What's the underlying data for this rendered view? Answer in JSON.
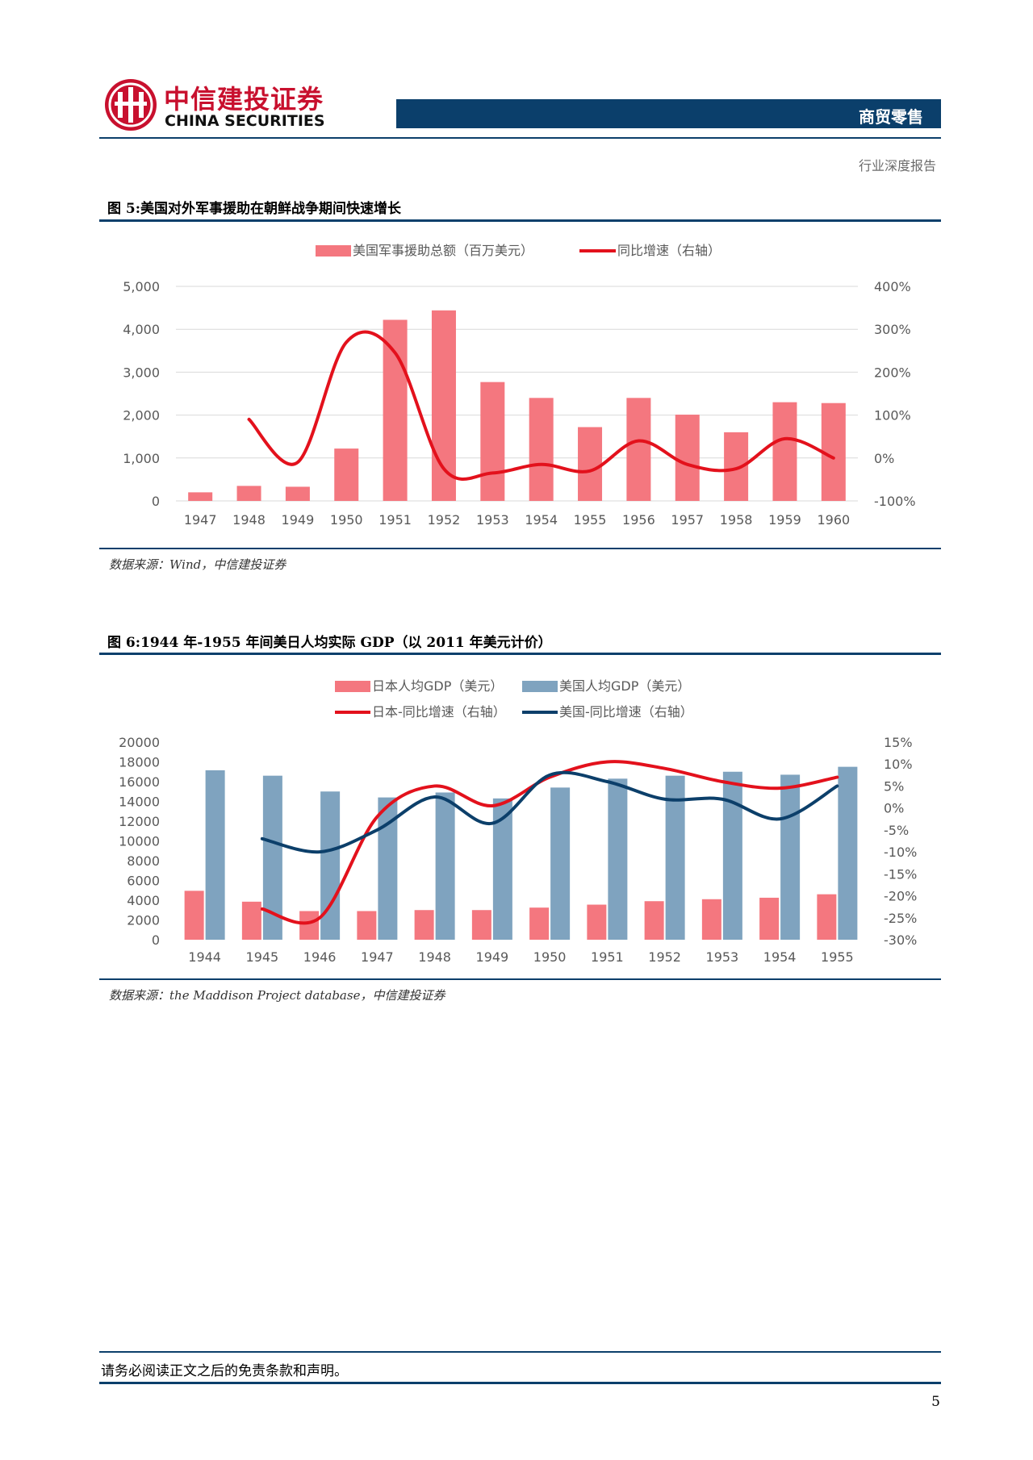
{
  "header": {
    "brand_cn": "中信建投证券",
    "brand_en": "CHINA SECURITIES",
    "section": "商贸零售",
    "report_type": "行业深度报告",
    "colors": {
      "navy": "#0b3f6b",
      "brand_red": "#c8102e"
    }
  },
  "figure5": {
    "title": "图 5:美国对外军事援助在朝鲜战争期间快速增长",
    "source": "数据来源：Wind，中信建投证券"
  },
  "figure6": {
    "title": "图 6:1944 年-1955 年间美日人均实际 GDP（以 2011 年美元计价）",
    "source": "数据来源：the Maddison Project database，中信建投证券"
  },
  "footer": {
    "disclaimer": "请务必阅读正文之后的免责条款和声明。",
    "page": "5"
  },
  "chart_data": [
    {
      "type": "bar",
      "categories": [
        "1947",
        "1948",
        "1949",
        "1950",
        "1951",
        "1952",
        "1953",
        "1954",
        "1955",
        "1956",
        "1957",
        "1958",
        "1959",
        "1960"
      ],
      "series": [
        {
          "name": "美国军事援助总额（百万美元）",
          "type": "bar",
          "axis": "left",
          "color": "#f4777f",
          "values": [
            200,
            350,
            330,
            1220,
            4220,
            4440,
            2770,
            2400,
            1720,
            2400,
            2010,
            1600,
            2300,
            2280
          ]
        },
        {
          "name": "同比增速（右轴）",
          "type": "line",
          "axis": "right",
          "color": "#e3111c",
          "values": [
            null,
            90,
            -10,
            270,
            245,
            -25,
            -35,
            -15,
            -30,
            40,
            -15,
            -25,
            45,
            0
          ]
        }
      ],
      "y_left": {
        "range": [
          0,
          5000
        ],
        "ticks": [
          "0",
          "1,000",
          "2,000",
          "3,000",
          "4,000",
          "5,000"
        ]
      },
      "y_right": {
        "range": [
          -100,
          400
        ],
        "ticks": [
          "-100%",
          "0%",
          "100%",
          "200%",
          "300%",
          "400%"
        ]
      },
      "legend": "top-center",
      "grid": true
    },
    {
      "type": "bar",
      "categories": [
        "1944",
        "1945",
        "1946",
        "1947",
        "1948",
        "1949",
        "1950",
        "1951",
        "1952",
        "1953",
        "1954",
        "1955"
      ],
      "series": [
        {
          "name": "日本人均GDP（美元）",
          "type": "bar",
          "axis": "left",
          "color": "#f4777f",
          "values": [
            4950,
            3850,
            2900,
            2900,
            3000,
            3000,
            3250,
            3550,
            3900,
            4100,
            4250,
            4600
          ]
        },
        {
          "name": "美国人均GDP（美元）",
          "type": "bar",
          "axis": "left",
          "color": "#7fa3bf",
          "values": [
            17150,
            16600,
            15000,
            14400,
            14900,
            14300,
            15400,
            16300,
            16600,
            17000,
            16700,
            17500
          ]
        },
        {
          "name": "日本-同比增速（右轴）",
          "type": "line",
          "axis": "right",
          "color": "#e3111c",
          "values": [
            null,
            -23,
            -25,
            -2,
            5,
            0.5,
            7,
            10.5,
            9,
            6,
            4.5,
            7
          ]
        },
        {
          "name": "美国-同比增速（右轴）",
          "type": "line",
          "axis": "right",
          "color": "#0c3f6a",
          "values": [
            null,
            -7,
            -10,
            -5,
            2.5,
            -3.5,
            7.5,
            6,
            2,
            2,
            -2.5,
            5
          ]
        }
      ],
      "y_left": {
        "range": [
          0,
          20000
        ],
        "ticks": [
          "0",
          "2000",
          "4000",
          "6000",
          "8000",
          "10000",
          "12000",
          "14000",
          "16000",
          "18000",
          "20000"
        ]
      },
      "y_right": {
        "range": [
          -30,
          15
        ],
        "ticks": [
          "-30%",
          "-25%",
          "-20%",
          "-15%",
          "-10%",
          "-5%",
          "0%",
          "5%",
          "10%",
          "15%"
        ]
      },
      "legend": "top-center",
      "grid": false
    }
  ]
}
